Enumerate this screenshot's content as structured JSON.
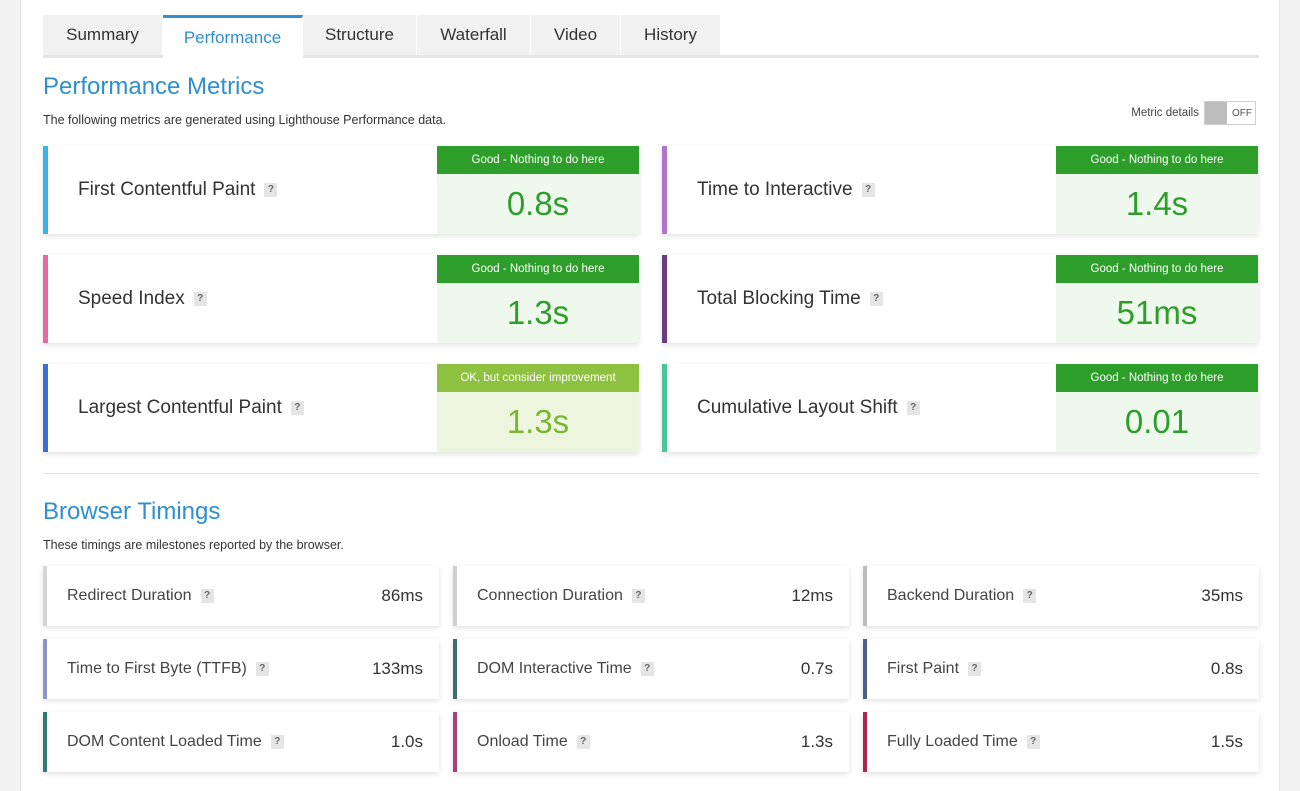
{
  "tabs": [
    {
      "label": "Summary",
      "active": false
    },
    {
      "label": "Performance",
      "active": true
    },
    {
      "label": "Structure",
      "active": false
    },
    {
      "label": "Waterfall",
      "active": false
    },
    {
      "label": "Video",
      "active": false
    },
    {
      "label": "History",
      "active": false
    }
  ],
  "performance": {
    "title": "Performance Metrics",
    "subtitle": "The following metrics are generated using Lighthouse Performance data.",
    "metric_details_label": "Metric details",
    "toggle_state": "OFF",
    "help_glyph": "?",
    "metrics": [
      {
        "label": "First Contentful Paint",
        "status": "Good - Nothing to do here",
        "value": "0.8s",
        "accent": "#35b5e9",
        "grade": "good"
      },
      {
        "label": "Time to Interactive",
        "status": "Good - Nothing to do here",
        "value": "1.4s",
        "accent": "#b374cf",
        "grade": "good"
      },
      {
        "label": "Speed Index",
        "status": "Good - Nothing to do here",
        "value": "1.3s",
        "accent": "#ea66a6",
        "grade": "good"
      },
      {
        "label": "Total Blocking Time",
        "status": "Good - Nothing to do here",
        "value": "51ms",
        "accent": "#6b3b7e",
        "grade": "good"
      },
      {
        "label": "Largest Contentful Paint",
        "status": "OK, but consider improvement",
        "value": "1.3s",
        "accent": "#3b6fd8",
        "grade": "ok"
      },
      {
        "label": "Cumulative Layout Shift",
        "status": "Good - Nothing to do here",
        "value": "0.01",
        "accent": "#48c49b",
        "grade": "good"
      }
    ]
  },
  "timings": {
    "title": "Browser Timings",
    "subtitle": "These timings are milestones reported by the browser.",
    "items": [
      {
        "label": "Redirect Duration",
        "value": "86ms",
        "accent": "#d6d6d6"
      },
      {
        "label": "Connection Duration",
        "value": "12ms",
        "accent": "#cfcfcf"
      },
      {
        "label": "Backend Duration",
        "value": "35ms",
        "accent": "#bdbdbd"
      },
      {
        "label": "Time to First Byte (TTFB)",
        "value": "133ms",
        "accent": "#8b93c9"
      },
      {
        "label": "DOM Interactive Time",
        "value": "0.7s",
        "accent": "#3f6e6e"
      },
      {
        "label": "First Paint",
        "value": "0.8s",
        "accent": "#4c5f8f"
      },
      {
        "label": "DOM Content Loaded Time",
        "value": "1.0s",
        "accent": "#2f7b72"
      },
      {
        "label": "Onload Time",
        "value": "1.3s",
        "accent": "#a8417a"
      },
      {
        "label": "Fully Loaded Time",
        "value": "1.5s",
        "accent": "#b0244f"
      }
    ]
  },
  "colors": {
    "brand_blue": "#2f8fd0",
    "good_green": "#2e9e2a",
    "ok_green": "#8ec13f"
  }
}
